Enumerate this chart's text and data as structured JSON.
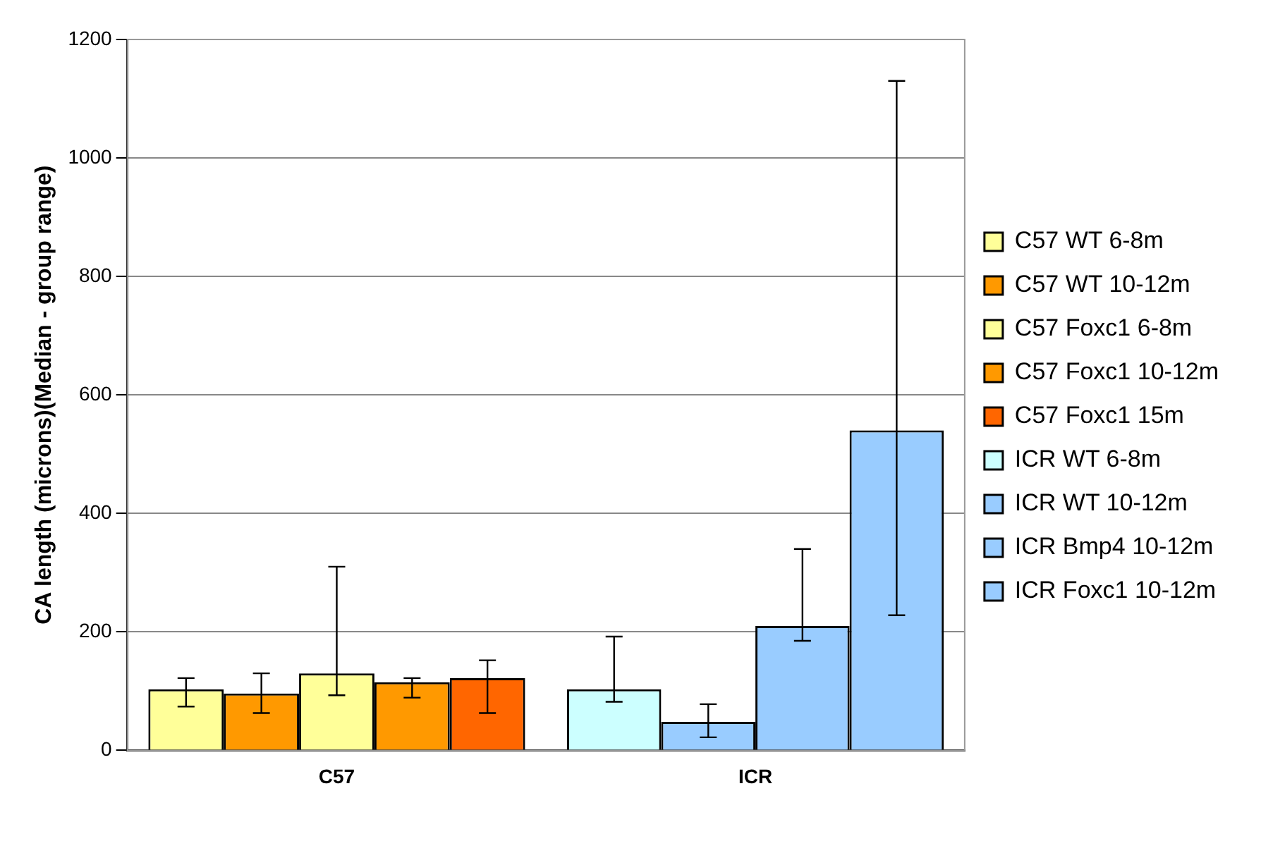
{
  "chart_data": {
    "type": "bar",
    "ylabel": "CA length (microns)(Median - group range)",
    "categories": [
      "C57",
      "ICR"
    ],
    "series": [
      {
        "name": "C57 WT 6-8m",
        "color": "#ffff99",
        "values": [
          103,
          null
        ],
        "errors": [
          [
            74,
            122
          ],
          null
        ]
      },
      {
        "name": "C57 WT 10-12m",
        "color": "#ff9900",
        "values": [
          96,
          null
        ],
        "errors": [
          [
            63,
            130
          ],
          null
        ]
      },
      {
        "name": "C57 Foxc1 6-8m",
        "color": "#ffff99",
        "values": [
          130,
          null
        ],
        "errors": [
          [
            93,
            310
          ],
          null
        ]
      },
      {
        "name": "C57 Foxc1 10-12m",
        "color": "#ff9900",
        "values": [
          115,
          null
        ],
        "errors": [
          [
            89,
            122
          ],
          null
        ]
      },
      {
        "name": "C57 Foxc1 15m",
        "color": "#ff6600",
        "values": [
          122,
          null
        ],
        "errors": [
          [
            63,
            152
          ],
          null
        ]
      },
      {
        "name": "ICR WT 6-8m",
        "color": "#ccffff",
        "values": [
          null,
          103
        ],
        "errors": [
          null,
          [
            82,
            192
          ]
        ]
      },
      {
        "name": "ICR WT 10-12m",
        "color": "#99ccff",
        "values": [
          null,
          48
        ],
        "errors": [
          null,
          [
            22,
            78
          ]
        ]
      },
      {
        "name": "ICR Bmp4 10-12m",
        "color": "#99ccff",
        "values": [
          null,
          210
        ],
        "errors": [
          null,
          [
            185,
            340
          ]
        ]
      },
      {
        "name": "ICR Foxc1 10-12m",
        "color": "#99ccff",
        "values": [
          null,
          540
        ],
        "errors": [
          null,
          [
            228,
            1130
          ]
        ]
      }
    ],
    "ylim": [
      0,
      1200
    ],
    "yticks": [
      0,
      200,
      400,
      600,
      800,
      1000,
      1200
    ],
    "grid": "y",
    "legend": "right"
  }
}
